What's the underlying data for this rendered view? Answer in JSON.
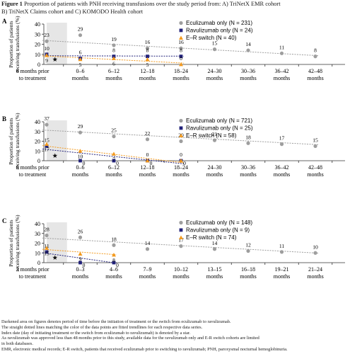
{
  "figure": {
    "label": "Figure 1",
    "caption_line1": "Proportion of patients with PNH receiving transfusions over the study period from: A) TriNetX EMR cohort",
    "caption_line2": "B) TriNetX Claims cohort and C) KOMODO Health cohort"
  },
  "colors": {
    "eculizumab": "#9e9e9e",
    "ravulizumab": "#22227a",
    "er_switch": "#f39a1e",
    "shade": "#e6e6e6",
    "index_star": "#111111"
  },
  "chart_data": [
    {
      "panel": "A",
      "type": "scatter",
      "ylabel": "Proportion of patients receiving transfusions (%)",
      "ylim": [
        0,
        40
      ],
      "yticks": [
        0,
        10,
        20,
        30,
        40
      ],
      "categories": [
        [
          "6 months prior",
          "to treatment"
        ],
        [
          "0–6",
          "months"
        ],
        [
          "6–12",
          "months"
        ],
        [
          "12–18",
          "months"
        ],
        [
          "18–24",
          "months"
        ],
        [
          "24–30",
          "months"
        ],
        [
          "30–36",
          "months"
        ],
        [
          "36–42",
          "months"
        ],
        [
          "42–48",
          "months"
        ]
      ],
      "shaded_category": 0,
      "index_star": 0.5,
      "series": [
        {
          "name": "Eculizumab only (N = 231)",
          "key": "eculizumab",
          "marker": "circle",
          "values": [
            23,
            29,
            19,
            16,
            16,
            15,
            14,
            11,
            8
          ],
          "labels": [
            "23",
            "29",
            "19",
            "16",
            "16",
            "15",
            "14",
            "11",
            "8"
          ],
          "trend": [
            23.8,
            8.7
          ]
        },
        {
          "name": "Ravulizumab only (N = 24)",
          "key": "ravulizumab",
          "marker": "square",
          "values": [
            10,
            6,
            8,
            8,
            8,
            null,
            null,
            null,
            null
          ],
          "labels": [
            "10",
            "6",
            "8",
            "8",
            "8",
            "",
            "",
            "",
            ""
          ],
          "trend": [
            8.6,
            8.2
          ]
        },
        {
          "name": "E–R switch (N = 40)",
          "key": "er_switch",
          "marker": "triangle",
          "values": [
            9,
            5,
            6,
            5,
            0,
            null,
            null,
            null,
            null
          ],
          "labels": [
            "9",
            "5",
            "6",
            "5",
            "0",
            "",
            "",
            "",
            ""
          ],
          "trend": [
            8.5,
            1.3
          ]
        }
      ]
    },
    {
      "panel": "B",
      "type": "scatter",
      "ylabel": "Proportion of patients receiving transfusions (%)",
      "ylim": [
        0,
        40
      ],
      "yticks": [
        0,
        10,
        20,
        30,
        40
      ],
      "categories": [
        [
          "6 months prior",
          "to treatment"
        ],
        [
          "0–6",
          "months"
        ],
        [
          "6–12",
          "months"
        ],
        [
          "12–18",
          "months"
        ],
        [
          "18–24",
          "months"
        ],
        [
          "24–30",
          "months"
        ],
        [
          "30–36",
          "months"
        ],
        [
          "36–42",
          "months"
        ],
        [
          "42–48",
          "months"
        ]
      ],
      "shaded_category": 0,
      "index_star": 0.5,
      "series": [
        {
          "name": "Eculizumab only (N = 721)",
          "key": "eculizumab",
          "marker": "circle",
          "values": [
            37,
            29,
            25,
            22,
            20,
            21,
            18,
            17,
            15
          ],
          "labels": [
            "37",
            "29",
            "25",
            "22",
            "20",
            "21",
            "18",
            "17",
            "15"
          ],
          "trend": [
            31.5,
            16.5
          ]
        },
        {
          "name": "Ravulizumab only (N = 25)",
          "key": "ravulizumab",
          "marker": "square",
          "values": [
            15,
            0,
            0,
            0,
            0,
            null,
            null,
            null,
            null
          ],
          "labels": [
            "15",
            "0",
            "0",
            "0",
            "0",
            "",
            "",
            "",
            ""
          ],
          "trend": [
            12,
            -3.2
          ]
        },
        {
          "name": "E–R switch (N = 58)",
          "key": "er_switch",
          "marker": "triangle",
          "values": [
            17,
            10,
            7,
            0,
            0,
            null,
            null,
            null,
            null
          ],
          "labels": [
            "17",
            "10",
            "7",
            "0",
            "0",
            "",
            "",
            "",
            ""
          ],
          "trend": [
            15.5,
            -2.2
          ]
        }
      ]
    },
    {
      "panel": "C",
      "type": "scatter",
      "ylabel": "Proportion of patients receiving transfusions (%)",
      "ylim": [
        0,
        40
      ],
      "yticks": [
        0,
        10,
        20,
        30,
        40
      ],
      "categories": [
        [
          "3 months prior",
          "to treatment"
        ],
        [
          "0–3",
          "months"
        ],
        [
          "4–6",
          "months"
        ],
        [
          "7–9",
          "months"
        ],
        [
          "10–12",
          "months"
        ],
        [
          "13–15",
          "months"
        ],
        [
          "16–18",
          "months"
        ],
        [
          "19–21",
          "months"
        ],
        [
          "21–24",
          "months"
        ]
      ],
      "shaded_category": 0,
      "index_star": 0.5,
      "series": [
        {
          "name": "Eculizumab only (N = 148)",
          "key": "eculizumab",
          "marker": "circle",
          "values": [
            28,
            26,
            18,
            14,
            17,
            14,
            12,
            11,
            10
          ],
          "labels": [
            "28",
            "26",
            "18",
            "14",
            "17",
            "14",
            "12",
            "11",
            "10"
          ],
          "trend": [
            25.3,
            9.8
          ]
        },
        {
          "name": "Ravulizumab only (N = 9)",
          "key": "ravulizumab",
          "marker": "square",
          "values": [
            11,
            0,
            0,
            null,
            null,
            null,
            null,
            null,
            null
          ],
          "labels": [
            "11",
            "0",
            "0",
            "",
            "",
            "",
            "",
            "",
            ""
          ],
          "trend": [
            10.2,
            -0.5
          ]
        },
        {
          "name": "E–R switch (N = 74)",
          "key": "er_switch",
          "marker": "triangle",
          "values": [
            15,
            9,
            8,
            null,
            null,
            null,
            null,
            null,
            null
          ],
          "labels": [
            "15",
            "9",
            "8",
            "",
            "",
            "",
            "",
            "",
            ""
          ],
          "trend": [
            13.7,
            8.2
          ]
        }
      ]
    }
  ],
  "footnotes": [
    "Darkened area on figures denotes period of time before the initiation of treatment or the switch from eculizumab to ravulizumab.",
    "The straight dotted lines matching the color of the data points are fitted trendlines for each respective data series.",
    "Index date (day of initiating treatment or the switch from eculizumab to ravulizumab) is denoted by a star.",
    "As ravulizumab was approved less than 48 months prior to this study, available data for the ravulizumab only and E-R switch cohorts are limited",
    "in both databases.",
    "EMR, electronic medical records; E-R switch, patients that received eculizumab prior to switching to ravulizumab; PNH, paroxysmal nocturnal hemoglobinuria."
  ]
}
